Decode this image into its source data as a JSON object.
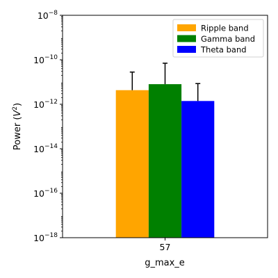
{
  "chart_data": {
    "type": "bar",
    "log_scale": true,
    "categories": [
      "57"
    ],
    "xlabel": "g_max_e",
    "ylabel_main": "Power (",
    "ylabel_base": "V",
    "ylabel_exp": "2",
    "ylabel_close": ")",
    "ylim": [
      1e-18,
      1e-08
    ],
    "yticks": [
      {
        "value": 1e-18,
        "base": "10",
        "exp": "−18"
      },
      {
        "value": 1e-16,
        "base": "10",
        "exp": "−16"
      },
      {
        "value": 1e-14,
        "base": "10",
        "exp": "−14"
      },
      {
        "value": 1e-12,
        "base": "10",
        "exp": "−12"
      },
      {
        "value": 1e-10,
        "base": "10",
        "exp": "−10"
      },
      {
        "value": 1e-08,
        "base": "10",
        "exp": "−8"
      }
    ],
    "grid": false,
    "legend_position": "top-right",
    "series": [
      {
        "name": "Ripple band",
        "color": "#FFA500",
        "values": [
          4.3e-12
        ],
        "error_upper": [
          2.8e-11
        ]
      },
      {
        "name": "Gamma band",
        "color": "#008000",
        "values": [
          8e-12
        ],
        "error_upper": [
          7e-11
        ]
      },
      {
        "name": "Theta band",
        "color": "#0000FF",
        "values": [
          1.4e-12
        ],
        "error_upper": [
          8.5e-12
        ]
      }
    ]
  }
}
